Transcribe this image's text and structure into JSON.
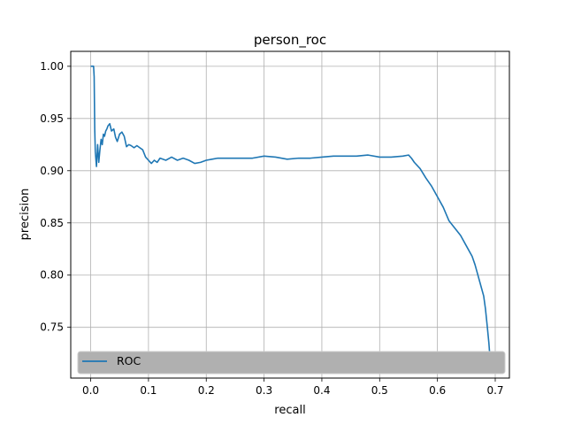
{
  "chart_data": {
    "type": "line",
    "title": "person_roc",
    "xlabel": "recall",
    "ylabel": "precision",
    "xlim": [
      -0.0345,
      0.7245
    ],
    "ylim": [
      0.7014,
      1.0143
    ],
    "xticks": [
      0.0,
      0.1,
      0.2,
      0.3,
      0.4,
      0.5,
      0.6,
      0.7
    ],
    "xtick_labels": [
      "0.0",
      "0.1",
      "0.2",
      "0.3",
      "0.4",
      "0.5",
      "0.6",
      "0.7"
    ],
    "yticks": [
      0.75,
      0.8,
      0.85,
      0.9,
      0.95,
      1.0
    ],
    "ytick_labels": [
      "0.75",
      "0.80",
      "0.85",
      "0.90",
      "0.95",
      "1.00"
    ],
    "grid": true,
    "legend": {
      "location": "lower-left",
      "facecolor": "#b0b0b0"
    },
    "series": [
      {
        "name": "ROC",
        "color": "#1f77b4",
        "x": [
          0.0,
          0.003,
          0.005,
          0.006,
          0.007,
          0.008,
          0.01,
          0.012,
          0.014,
          0.016,
          0.018,
          0.02,
          0.022,
          0.024,
          0.026,
          0.028,
          0.03,
          0.033,
          0.036,
          0.04,
          0.043,
          0.046,
          0.05,
          0.054,
          0.058,
          0.062,
          0.066,
          0.07,
          0.075,
          0.08,
          0.085,
          0.09,
          0.095,
          0.1,
          0.105,
          0.11,
          0.115,
          0.12,
          0.13,
          0.14,
          0.15,
          0.16,
          0.17,
          0.18,
          0.19,
          0.2,
          0.21,
          0.22,
          0.24,
          0.26,
          0.28,
          0.3,
          0.32,
          0.34,
          0.36,
          0.38,
          0.4,
          0.42,
          0.44,
          0.46,
          0.48,
          0.5,
          0.52,
          0.54,
          0.55,
          0.555,
          0.56,
          0.57,
          0.58,
          0.59,
          0.6,
          0.61,
          0.62,
          0.63,
          0.64,
          0.65,
          0.66,
          0.665,
          0.67,
          0.675,
          0.68,
          0.683,
          0.686,
          0.689,
          0.691,
          0.693
        ],
        "y": [
          1.0,
          1.0,
          1.0,
          0.99,
          0.94,
          0.918,
          0.904,
          0.925,
          0.908,
          0.92,
          0.93,
          0.925,
          0.935,
          0.933,
          0.938,
          0.94,
          0.943,
          0.945,
          0.938,
          0.94,
          0.932,
          0.928,
          0.935,
          0.937,
          0.933,
          0.923,
          0.925,
          0.924,
          0.922,
          0.924,
          0.922,
          0.92,
          0.913,
          0.91,
          0.907,
          0.91,
          0.908,
          0.912,
          0.91,
          0.913,
          0.91,
          0.912,
          0.91,
          0.907,
          0.908,
          0.91,
          0.911,
          0.912,
          0.912,
          0.912,
          0.912,
          0.914,
          0.913,
          0.911,
          0.912,
          0.912,
          0.913,
          0.914,
          0.914,
          0.914,
          0.915,
          0.913,
          0.913,
          0.914,
          0.915,
          0.912,
          0.908,
          0.902,
          0.893,
          0.885,
          0.875,
          0.865,
          0.852,
          0.845,
          0.838,
          0.828,
          0.818,
          0.81,
          0.8,
          0.79,
          0.78,
          0.768,
          0.752,
          0.735,
          0.72,
          0.715
        ]
      }
    ]
  }
}
